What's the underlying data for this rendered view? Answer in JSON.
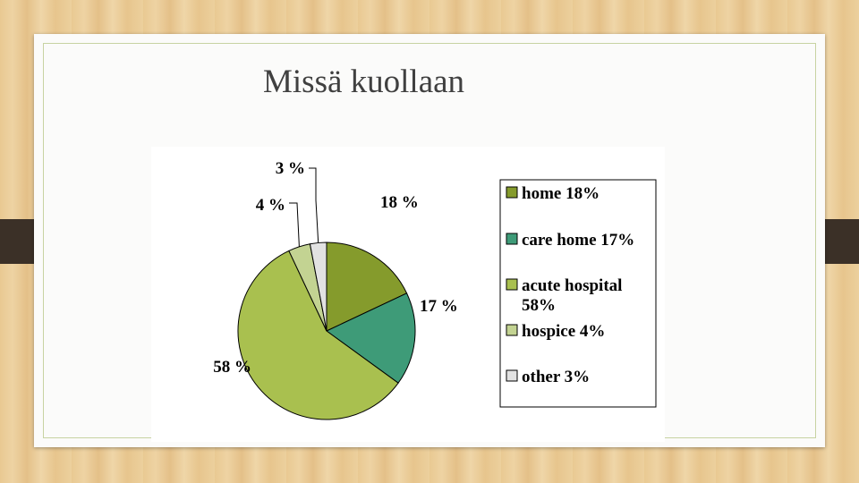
{
  "slide": {
    "title": "Missä kuollaan"
  },
  "chart_data": {
    "type": "pie",
    "title": "",
    "slices": [
      {
        "name": "home",
        "value": 18,
        "label": "18 %",
        "legend": [
          "home 18%"
        ],
        "color": "#859b2c"
      },
      {
        "name": "care home",
        "value": 17,
        "label": "17 %",
        "legend": [
          "care home 17%"
        ],
        "color": "#3e9b78"
      },
      {
        "name": "acute hospital",
        "value": 58,
        "label": "58 %",
        "legend": [
          "acute hospital",
          "58%"
        ],
        "color": "#a9c04f"
      },
      {
        "name": "hospice",
        "value": 4,
        "label": "4 %",
        "legend": [
          "hospice 4%"
        ],
        "color": "#c3d392"
      },
      {
        "name": "other",
        "value": 3,
        "label": "3 %",
        "legend": [
          "other 3%"
        ],
        "color": "#e2e2e2"
      }
    ],
    "legend_position": "right"
  }
}
